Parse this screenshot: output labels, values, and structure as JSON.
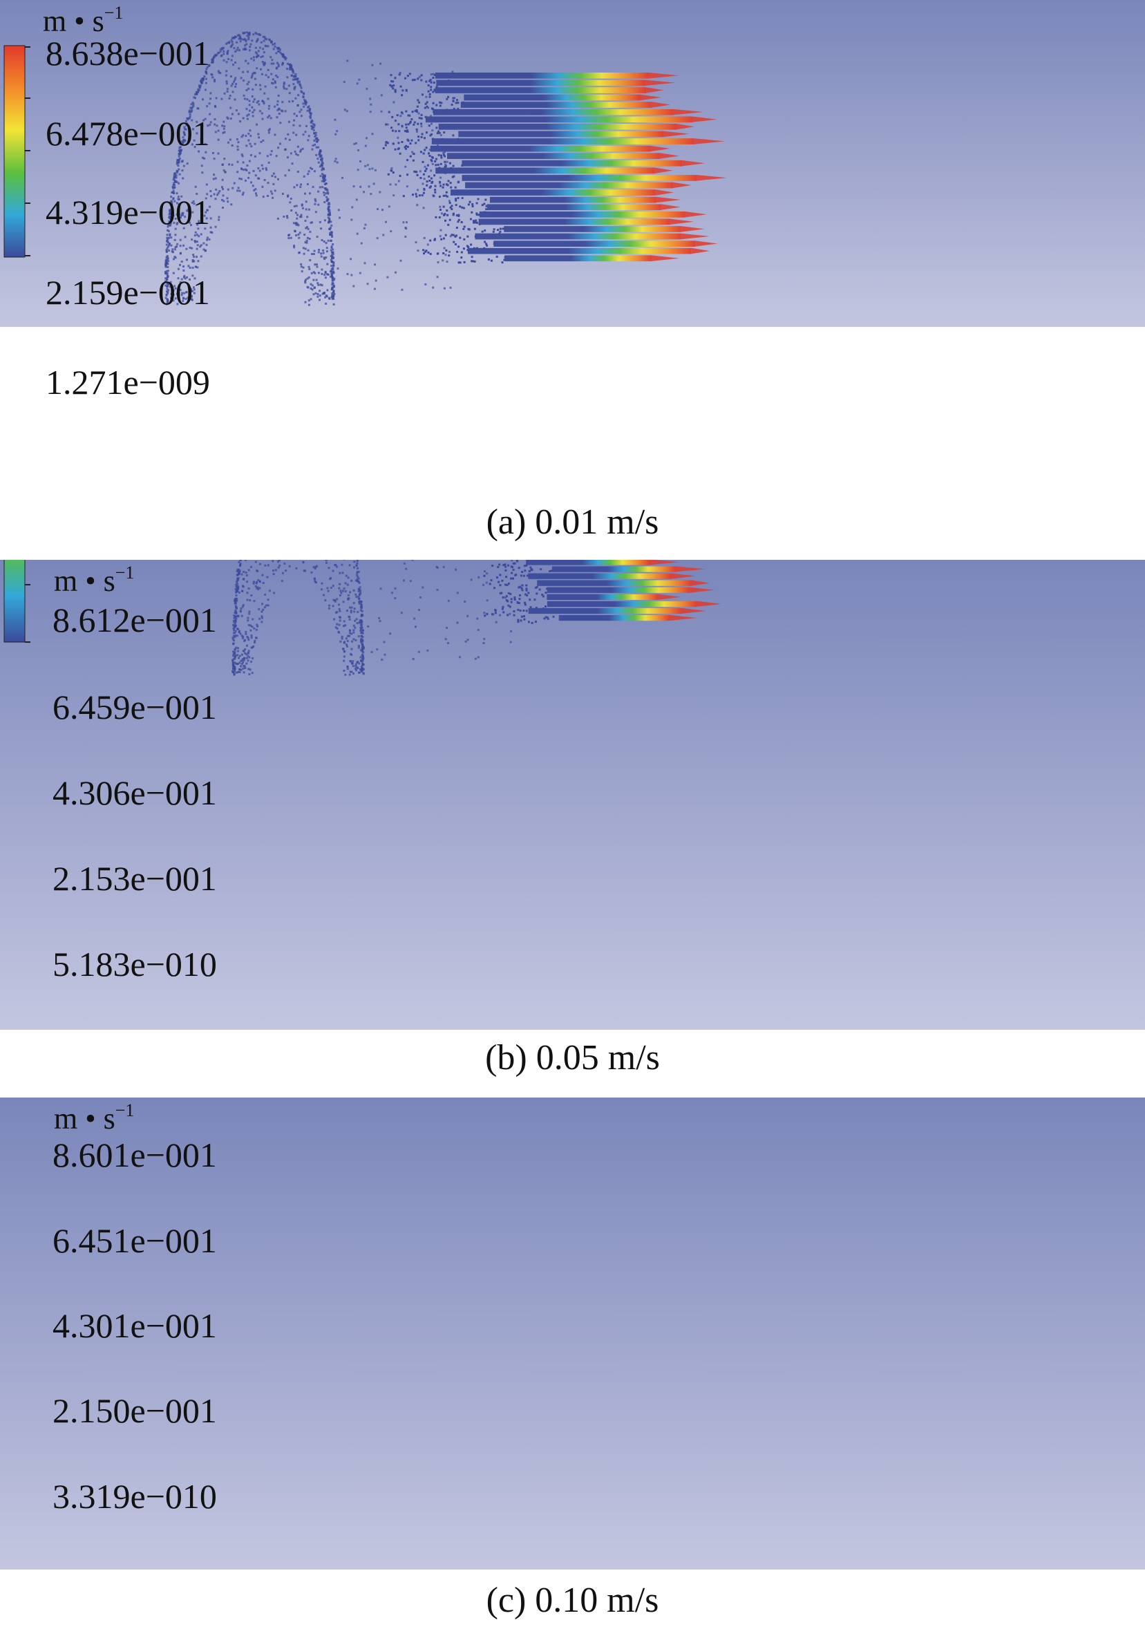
{
  "panels": [
    {
      "unit": {
        "base": "m • s",
        "exp": "−1"
      },
      "ticks": [
        "8.638e−001",
        "6.478e−001",
        "4.319e−001",
        "2.159e−001",
        "1.271e−009"
      ],
      "caption": "(a) 0.01 m/s"
    },
    {
      "unit": {
        "base": "m • s",
        "exp": "−1"
      },
      "ticks": [
        "8.612e−001",
        "6.459e−001",
        "4.306e−001",
        "2.153e−001",
        "5.183e−010"
      ],
      "caption": "(b) 0.05 m/s"
    },
    {
      "unit": {
        "base": "m • s",
        "exp": "−1"
      },
      "ticks": [
        "8.601e−001",
        "6.451e−001",
        "4.301e−001",
        "2.150e−001",
        "3.319e−010"
      ],
      "caption": "(c) 0.10 m/s"
    }
  ],
  "colors": {
    "background_top": "#7a86ba",
    "background_bottom": "#c4c6e0",
    "particle": "#3b4a9a",
    "colormap": [
      "#3b4a9a",
      "#33a8d8",
      "#5cbf3e",
      "#f2e436",
      "#f28a2a",
      "#e23a2a"
    ]
  }
}
